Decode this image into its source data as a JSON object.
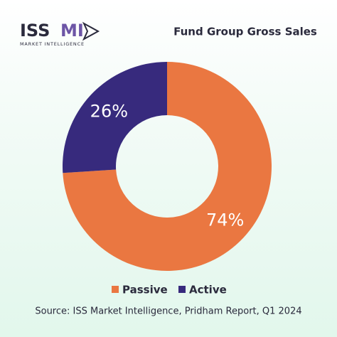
{
  "logo": {
    "name_main": "ISS",
    "name_accent": "MI",
    "tagline": "MARKET INTELLIGENCE"
  },
  "chart_data": {
    "type": "donut",
    "title": "Fund Group Gross Sales",
    "categories": [
      "Passive",
      "Active"
    ],
    "values": [
      74,
      26
    ],
    "value_labels": [
      "74%",
      "26%"
    ],
    "colors": [
      "#ea7741",
      "#372a7d"
    ],
    "source": "Source: ISS Market Intelligence, Pridham Report, Q1 2024"
  }
}
